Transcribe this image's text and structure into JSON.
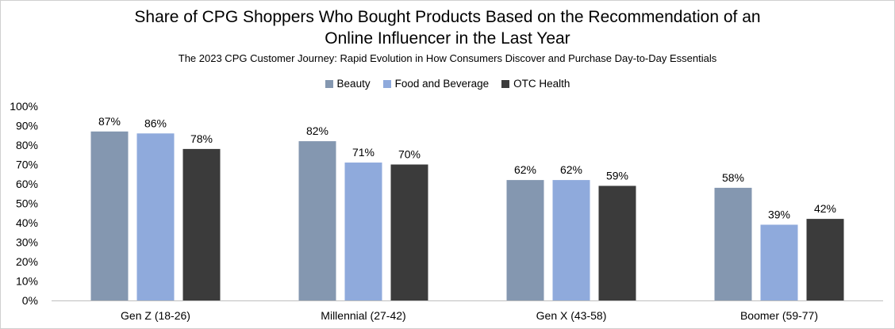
{
  "chart_data": {
    "type": "bar",
    "title": "Share of CPG Shoppers Who Bought Products Based on the Recommendation of an Online Influencer in the Last Year",
    "title_lines": [
      "Share of CPG Shoppers Who Bought Products Based on the Recommendation of an",
      "Online Influencer in the Last Year"
    ],
    "subtitle": "The 2023 CPG Customer Journey: Rapid Evolution in How Consumers Discover and Purchase Day-to-Day Essentials",
    "categories": [
      "Gen Z (18-26)",
      "Millennial (27-42)",
      "Gen X (43-58)",
      "Boomer (59-77)"
    ],
    "series": [
      {
        "name": "Beauty",
        "color": "#8497b0",
        "values": [
          87,
          82,
          62,
          58
        ],
        "labels": [
          "87%",
          "82%",
          "62%",
          "58%"
        ]
      },
      {
        "name": "Food and Beverage",
        "color": "#8faadc",
        "values": [
          86,
          71,
          62,
          39
        ],
        "labels": [
          "86%",
          "71%",
          "62%",
          "39%"
        ]
      },
      {
        "name": "OTC Health",
        "color": "#3b3b3b",
        "values": [
          78,
          70,
          59,
          42
        ],
        "labels": [
          "78%",
          "70%",
          "59%",
          "42%"
        ]
      }
    ],
    "ylim": [
      0,
      100
    ],
    "yticks": [
      0,
      10,
      20,
      30,
      40,
      50,
      60,
      70,
      80,
      90,
      100
    ],
    "ytick_labels": [
      "0%",
      "10%",
      "20%",
      "30%",
      "40%",
      "50%",
      "60%",
      "70%",
      "80%",
      "90%",
      "100%"
    ],
    "xlabel": "",
    "ylabel": "",
    "grid": false,
    "legend_position": "top-center"
  }
}
